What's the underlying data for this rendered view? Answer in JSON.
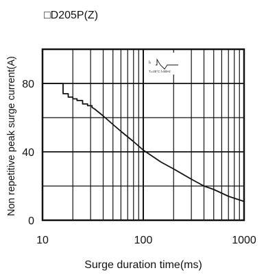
{
  "chart_data": {
    "type": "line",
    "title": "□D205P(Z)",
    "xlabel": "Surge duration time(ms)",
    "ylabel": "Non repetitive peak surge current(A)",
    "xscale": "log",
    "xlim": [
      10,
      1000
    ],
    "ylim": [
      0,
      100
    ],
    "x_ticks": [
      10,
      100,
      1000
    ],
    "x_tick_labels": [
      "10",
      "100",
      "1000"
    ],
    "y_ticks": [
      0,
      40,
      80
    ],
    "y_tick_labels": [
      "0",
      "40",
      "80"
    ],
    "grid": true,
    "legend": "none",
    "inset": {
      "symbol_label": "Iₜ",
      "condition": "Tⱼ=25°C f=50Hz"
    },
    "series": [
      {
        "color": "#111111",
        "x": [
          10,
          16,
          16,
          18,
          18,
          20,
          20,
          22,
          22,
          25,
          25,
          28,
          28,
          31,
          31,
          33,
          40,
          50,
          60,
          80,
          100,
          150,
          200,
          300,
          400,
          500,
          700,
          1000
        ],
        "y": [
          80,
          80,
          74,
          74,
          72,
          72,
          71,
          71,
          70,
          70,
          68,
          68,
          67,
          67,
          66,
          65,
          61,
          56,
          52,
          46,
          41,
          34,
          30,
          24,
          20,
          18,
          14,
          11
        ]
      }
    ]
  }
}
